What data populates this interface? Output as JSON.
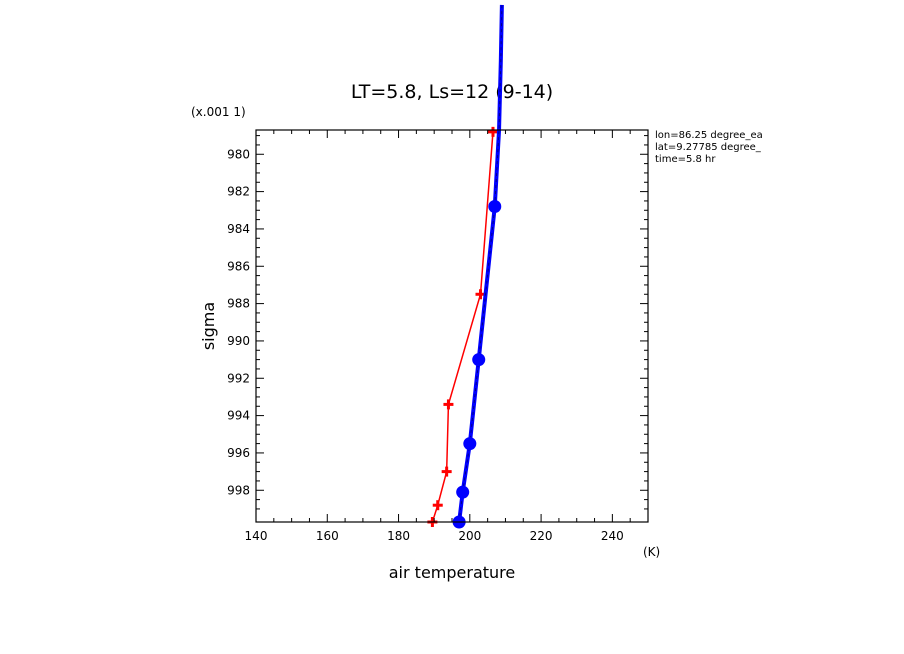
{
  "chart_data": {
    "type": "line",
    "title": "LT=5.8, Ls=12 (9-14)",
    "xlabel": "air temperature",
    "xunit": "(K)",
    "ylabel": "sigma",
    "yscale_note": "(x.001 1)",
    "xlim": [
      140,
      250
    ],
    "ylim": [
      978.7,
      999.7
    ],
    "y_inverted": true,
    "x_ticks": [
      140,
      160,
      180,
      200,
      220,
      240
    ],
    "y_ticks": [
      980,
      982,
      984,
      986,
      988,
      990,
      992,
      994,
      996,
      998
    ],
    "grid": false,
    "info": [
      "lon=86.25 degree_ea",
      "lat=9.27785 degree_",
      "time=5.8 hr"
    ],
    "series": [
      {
        "color": "#ff0000",
        "marker": "plus",
        "points": [
          {
            "x": 189.5,
            "y": 999.7
          },
          {
            "x": 191.0,
            "y": 998.8
          },
          {
            "x": 193.5,
            "y": 997.0
          },
          {
            "x": 194.0,
            "y": 993.4
          },
          {
            "x": 203.0,
            "y": 987.5
          },
          {
            "x": 206.5,
            "y": 978.8
          }
        ]
      },
      {
        "color": "#0000ff",
        "marker": "circle",
        "dashed_overlay": true,
        "points": [
          {
            "x": 197.0,
            "y": 999.7
          },
          {
            "x": 198.0,
            "y": 998.1
          },
          {
            "x": 200.0,
            "y": 995.5
          },
          {
            "x": 202.5,
            "y": 991.0
          },
          {
            "x": 207.0,
            "y": 982.8
          }
        ],
        "upper_trace": [
          {
            "x": 207.0,
            "y": 982.8
          },
          {
            "x": 208.2,
            "y": 978.7
          },
          {
            "x": 208.7,
            "y": 975.0
          },
          {
            "x": 209.0,
            "y": 972.0
          }
        ]
      }
    ]
  }
}
